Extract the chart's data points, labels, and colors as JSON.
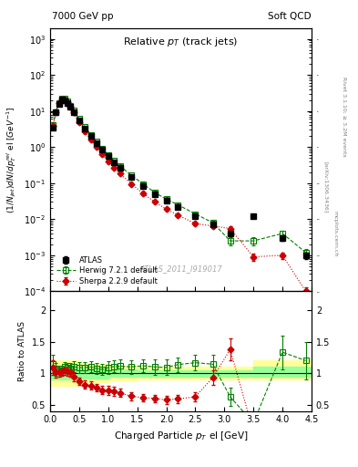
{
  "title_main": "Relative p_{T} (track jets)",
  "header_left": "7000 GeV pp",
  "header_right": "Soft QCD",
  "right_label": "Rivet 3.1.10; ≥ 3.2M events",
  "arxiv_label": "[arXiv:1306.3436]",
  "mcplots_label": "mcplots.cern.ch",
  "watermark": "ATLAS_2011_I919017",
  "xlabel": "Charged Particle p_{T} el [GeV]",
  "ylabel_main": "(1/Njet)dN/dp^{rel}_{T} el [GeV^{-1}]",
  "ylabel_ratio": "Ratio to ATLAS",
  "xlim": [
    0,
    4.5
  ],
  "ylim_main": [
    0.0001,
    2000
  ],
  "ylim_ratio": [
    0.4,
    2.3
  ],
  "atlas_x": [
    0.05,
    0.1,
    0.15,
    0.2,
    0.25,
    0.3,
    0.35,
    0.4,
    0.5,
    0.6,
    0.7,
    0.8,
    0.9,
    1.0,
    1.1,
    1.2,
    1.4,
    1.6,
    1.8,
    2.0,
    2.2,
    2.5,
    2.8,
    3.1,
    3.5,
    4.0,
    4.4
  ],
  "atlas_y": [
    3.5,
    9.0,
    16.0,
    21.0,
    20.0,
    17.0,
    13.0,
    9.5,
    5.5,
    3.3,
    2.0,
    1.3,
    0.85,
    0.55,
    0.38,
    0.27,
    0.15,
    0.085,
    0.05,
    0.033,
    0.022,
    0.012,
    0.007,
    0.004,
    0.012,
    0.003,
    0.001
  ],
  "atlas_yerr": [
    0.4,
    0.8,
    1.2,
    1.5,
    1.4,
    1.2,
    1.0,
    0.7,
    0.4,
    0.25,
    0.15,
    0.1,
    0.07,
    0.05,
    0.03,
    0.025,
    0.015,
    0.008,
    0.005,
    0.003,
    0.002,
    0.001,
    0.001,
    0.0005,
    0.001,
    0.0005,
    0.0002
  ],
  "herwig_x": [
    0.05,
    0.1,
    0.15,
    0.2,
    0.25,
    0.3,
    0.35,
    0.4,
    0.5,
    0.6,
    0.7,
    0.8,
    0.9,
    1.0,
    1.1,
    1.2,
    1.4,
    1.6,
    1.8,
    2.0,
    2.2,
    2.5,
    2.8,
    3.1,
    3.5,
    4.0,
    4.4
  ],
  "herwig_y": [
    4.0,
    9.5,
    16.5,
    22.0,
    22.0,
    18.5,
    14.0,
    10.5,
    6.0,
    3.6,
    2.2,
    1.4,
    0.9,
    0.6,
    0.42,
    0.3,
    0.165,
    0.095,
    0.055,
    0.036,
    0.025,
    0.014,
    0.008,
    0.0025,
    0.0025,
    0.004,
    0.0012
  ],
  "herwig_yerr": [
    0.5,
    0.9,
    1.3,
    1.6,
    1.5,
    1.3,
    1.1,
    0.8,
    0.45,
    0.28,
    0.17,
    0.11,
    0.075,
    0.055,
    0.035,
    0.028,
    0.016,
    0.009,
    0.006,
    0.004,
    0.0025,
    0.0015,
    0.001,
    0.0006,
    0.0006,
    0.0008,
    0.0003
  ],
  "sherpa_x": [
    0.05,
    0.1,
    0.15,
    0.2,
    0.25,
    0.3,
    0.35,
    0.4,
    0.5,
    0.6,
    0.7,
    0.8,
    0.9,
    1.0,
    1.1,
    1.2,
    1.4,
    1.6,
    1.8,
    2.0,
    2.2,
    2.5,
    2.8,
    3.1,
    3.5,
    4.0,
    4.4
  ],
  "sherpa_y": [
    3.8,
    9.2,
    16.2,
    21.5,
    20.8,
    17.5,
    13.2,
    9.0,
    4.8,
    2.7,
    1.6,
    1.0,
    0.62,
    0.4,
    0.27,
    0.185,
    0.095,
    0.052,
    0.03,
    0.019,
    0.013,
    0.0075,
    0.0065,
    0.0055,
    0.0009,
    0.001,
    0.0001
  ],
  "sherpa_yerr": [
    0.4,
    0.8,
    1.2,
    1.5,
    1.4,
    1.2,
    1.0,
    0.7,
    0.35,
    0.22,
    0.13,
    0.08,
    0.055,
    0.038,
    0.026,
    0.018,
    0.009,
    0.005,
    0.003,
    0.002,
    0.0015,
    0.0009,
    0.0008,
    0.0007,
    0.0002,
    0.0002,
    3e-05
  ],
  "band_x": [
    0.0,
    0.5,
    1.0,
    1.5,
    2.0,
    2.5,
    3.0,
    3.5,
    4.0,
    4.5
  ],
  "band_green_lo": [
    0.9,
    0.92,
    0.94,
    0.95,
    0.95,
    0.95,
    0.95,
    0.95,
    0.95,
    0.95
  ],
  "band_green_hi": [
    1.1,
    1.08,
    1.06,
    1.05,
    1.05,
    1.05,
    1.05,
    1.1,
    1.1,
    1.1
  ],
  "band_yellow_lo": [
    0.8,
    0.85,
    0.88,
    0.9,
    0.9,
    0.9,
    0.9,
    0.9,
    0.9,
    0.9
  ],
  "band_yellow_hi": [
    1.2,
    1.15,
    1.12,
    1.1,
    1.1,
    1.1,
    1.1,
    1.2,
    1.2,
    1.2
  ],
  "atlas_color": "#000000",
  "herwig_color": "#008000",
  "sherpa_color": "#cc0000",
  "legend_entries": [
    "ATLAS",
    "Herwig 7.2.1 default",
    "Sherpa 2.2.9 default"
  ]
}
